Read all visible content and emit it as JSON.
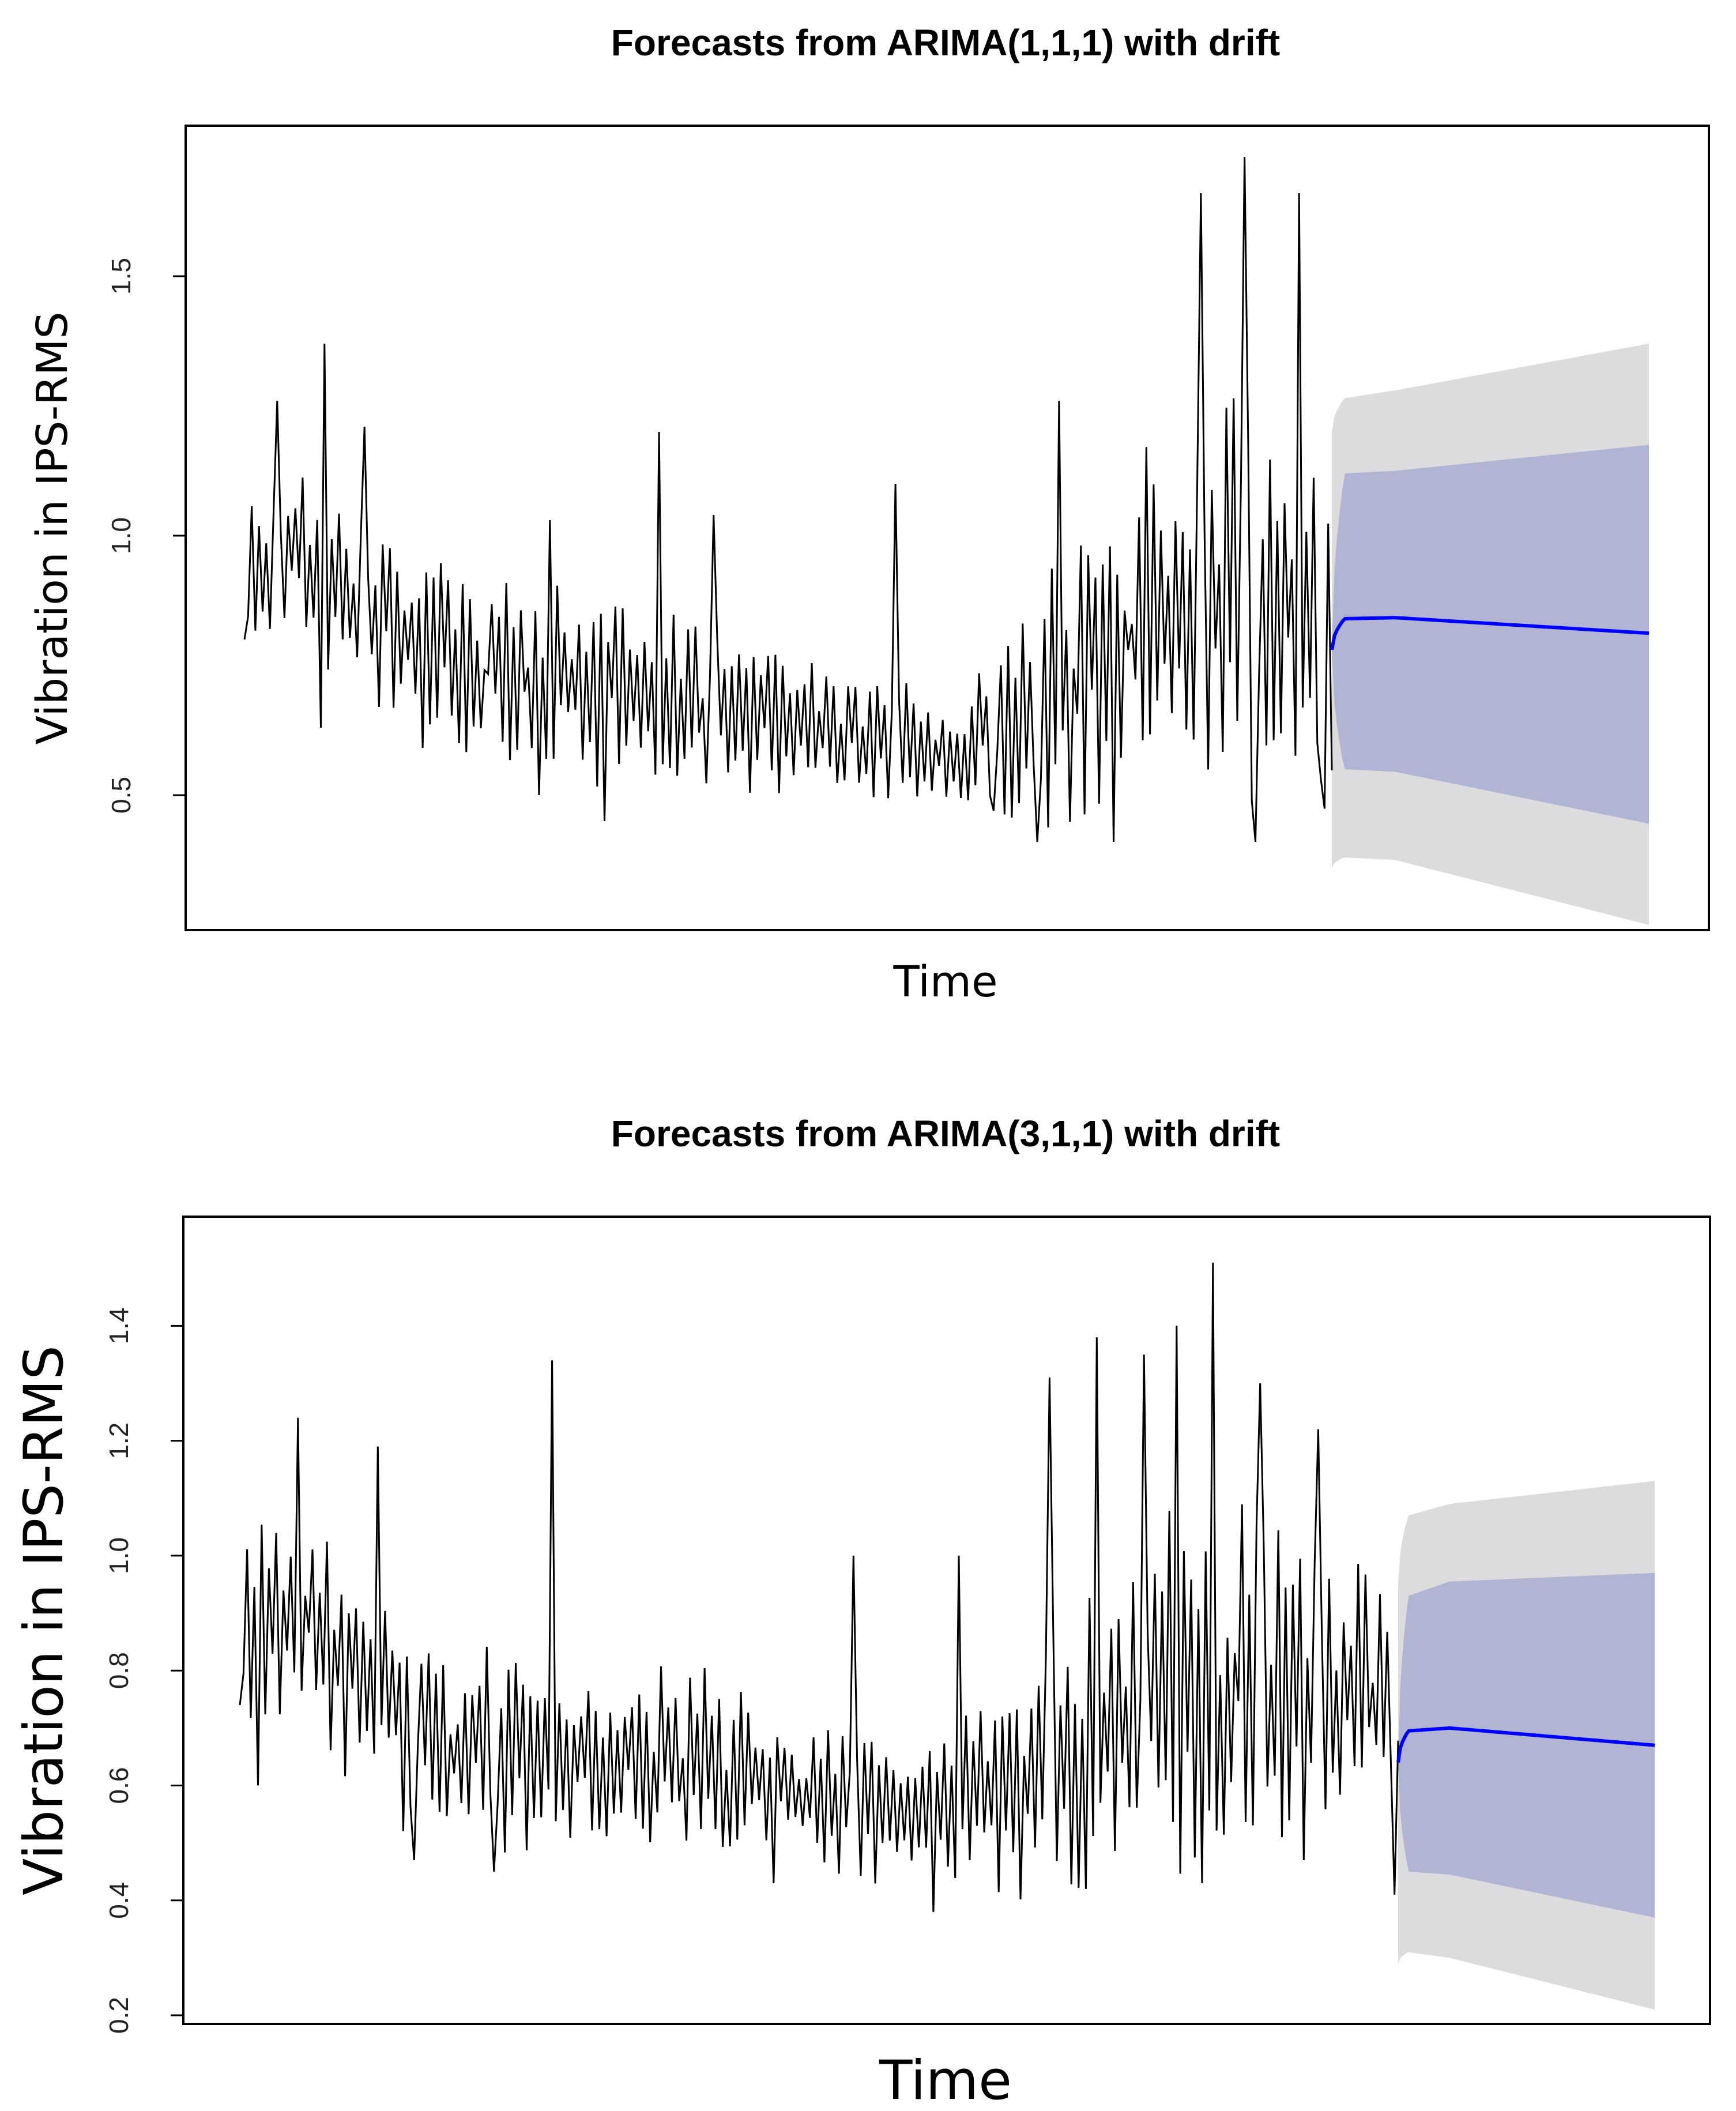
{
  "chart_data": [
    {
      "type": "line",
      "title": "Forecasts from ARIMA(1,1,1) with drift",
      "xlabel": "Time",
      "ylabel": "Vibration in IPS-RMS",
      "ylim": [
        0.24,
        1.79
      ],
      "yticks": [
        0.5,
        1.0,
        1.5
      ],
      "ytick_labels": [
        "0.5",
        "1.0",
        "1.5"
      ],
      "grid": false,
      "legend": "none",
      "history": {
        "n": 300,
        "seed": 17,
        "start": 0.8,
        "baseline": [
          [
            0,
            0.95
          ],
          [
            0.05,
            0.98
          ],
          [
            0.12,
            0.82
          ],
          [
            0.25,
            0.72
          ],
          [
            0.4,
            0.68
          ],
          [
            0.55,
            0.62
          ],
          [
            0.66,
            0.56
          ],
          [
            0.72,
            0.68
          ],
          [
            0.85,
            0.85
          ],
          [
            1,
            0.85
          ]
        ],
        "amplitude": [
          [
            0,
            0.15
          ],
          [
            0.3,
            0.16
          ],
          [
            0.55,
            0.12
          ],
          [
            0.66,
            0.09
          ],
          [
            0.75,
            0.25
          ],
          [
            0.9,
            0.35
          ],
          [
            1,
            0.3
          ]
        ],
        "spikes": [
          [
            0.03,
            1.26
          ],
          [
            0.075,
            1.37
          ],
          [
            0.11,
            1.21
          ],
          [
            0.28,
            1.03
          ],
          [
            0.38,
            1.2
          ],
          [
            0.43,
            1.04
          ],
          [
            0.6,
            1.1
          ],
          [
            0.75,
            1.26
          ],
          [
            0.8,
            1.51
          ],
          [
            0.88,
            1.66
          ],
          [
            0.92,
            1.73
          ],
          [
            0.97,
            1.66
          ],
          [
            0.07,
            0.63
          ],
          [
            0.27,
            0.5
          ],
          [
            0.33,
            0.45
          ],
          [
            0.69,
            0.47
          ],
          [
            0.73,
            0.41
          ],
          [
            0.8,
            0.41
          ],
          [
            0.93,
            0.41
          ],
          [
            0.99,
            0.53
          ]
        ]
      },
      "forecast": {
        "n": 120,
        "mean": [
          0.78,
          0.84,
          0.842,
          0.812
        ],
        "lo80": [
          0.78,
          0.55,
          0.545,
          0.445
        ],
        "hi80": [
          0.78,
          1.12,
          1.125,
          1.175
        ],
        "lo95": [
          0.36,
          0.38,
          0.375,
          0.25
        ],
        "hi95": [
          1.2,
          1.265,
          1.28,
          1.37
        ]
      },
      "colors": {
        "series": "#000000",
        "mean": "#0000ff",
        "band80": "#b1b5d3",
        "band95": "#dcdcdf",
        "frame": "#000000"
      }
    },
    {
      "type": "line",
      "title": "Forecasts from ARIMA(3,1,1) with drift",
      "xlabel": "Time",
      "ylabel": "Vibration in IPS-RMS",
      "ylim": [
        0.185,
        1.59
      ],
      "yticks": [
        0.2,
        0.4,
        0.6,
        0.8,
        1.0,
        1.2,
        1.4
      ],
      "ytick_labels": [
        "0.2",
        "0.4",
        "0.6",
        "0.8",
        "1.0",
        "1.2",
        "1.4"
      ],
      "grid": false,
      "legend": "none",
      "history": {
        "n": 320,
        "seed": 29,
        "start": 0.74,
        "baseline": [
          [
            0,
            0.9
          ],
          [
            0.06,
            0.88
          ],
          [
            0.12,
            0.72
          ],
          [
            0.25,
            0.65
          ],
          [
            0.4,
            0.64
          ],
          [
            0.5,
            0.58
          ],
          [
            0.6,
            0.55
          ],
          [
            0.72,
            0.66
          ],
          [
            0.85,
            0.8
          ],
          [
            1,
            0.75
          ]
        ],
        "amplitude": [
          [
            0,
            0.17
          ],
          [
            0.3,
            0.15
          ],
          [
            0.5,
            0.12
          ],
          [
            0.6,
            0.1
          ],
          [
            0.7,
            0.22
          ],
          [
            0.85,
            0.3
          ],
          [
            1,
            0.2
          ]
        ],
        "spikes": [
          [
            0.015,
            1.24
          ],
          [
            0.05,
            1.24
          ],
          [
            0.12,
            1.19
          ],
          [
            0.27,
            1.34
          ],
          [
            0.53,
            1.0
          ],
          [
            0.6,
            0.9
          ],
          [
            0.62,
            1.0
          ],
          [
            0.7,
            1.31
          ],
          [
            0.74,
            1.38
          ],
          [
            0.78,
            1.35
          ],
          [
            0.81,
            1.4
          ],
          [
            0.84,
            1.51
          ],
          [
            0.88,
            1.3
          ],
          [
            0.93,
            1.22
          ],
          [
            0.017,
            0.6
          ],
          [
            0.15,
            0.47
          ],
          [
            0.22,
            0.45
          ],
          [
            0.46,
            0.43
          ],
          [
            0.6,
            0.38
          ],
          [
            0.73,
            0.42
          ],
          [
            0.83,
            0.43
          ],
          [
            0.92,
            0.47
          ],
          [
            0.996,
            0.41
          ]
        ]
      },
      "forecast": {
        "n": 120,
        "mean": [
          0.64,
          0.695,
          0.7,
          0.67
        ],
        "lo80": [
          0.64,
          0.45,
          0.445,
          0.37
        ],
        "hi80": [
          0.64,
          0.93,
          0.955,
          0.97
        ],
        "lo95": [
          0.29,
          0.31,
          0.3,
          0.21
        ],
        "hi95": [
          0.95,
          1.07,
          1.09,
          1.13
        ]
      },
      "colors": {
        "series": "#000000",
        "mean": "#0000ff",
        "band80": "#b1b5d3",
        "band95": "#dcdcdf",
        "frame": "#000000"
      }
    }
  ]
}
